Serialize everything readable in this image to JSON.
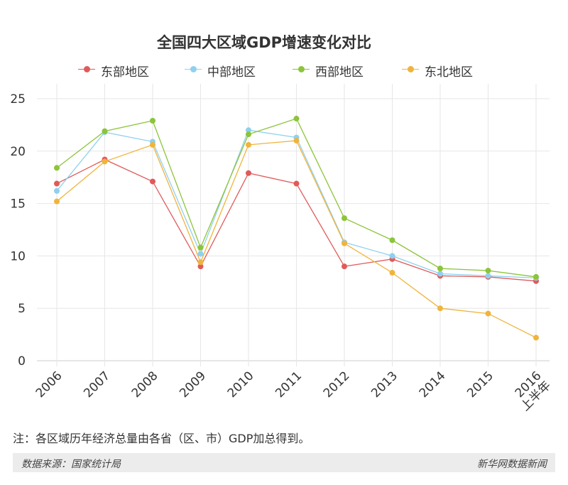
{
  "chart_data": {
    "type": "line",
    "title": "全国四大区域GDP增速变化对比",
    "categories": [
      "2006",
      "2007",
      "2008",
      "2009",
      "2010",
      "2011",
      "2012",
      "2013",
      "2014",
      "2015",
      "2016\n上半年"
    ],
    "series": [
      {
        "name": "东部地区",
        "color": "#e05a5a",
        "values": [
          16.9,
          19.2,
          17.1,
          9.0,
          17.9,
          16.9,
          9.0,
          9.7,
          8.1,
          8.0,
          7.6
        ]
      },
      {
        "name": "中部地区",
        "color": "#8fd0ee",
        "values": [
          16.2,
          21.8,
          20.9,
          10.2,
          22.0,
          21.3,
          11.3,
          10.0,
          8.3,
          8.1,
          7.9
        ]
      },
      {
        "name": "西部地区",
        "color": "#8cc43a",
        "values": [
          18.4,
          21.9,
          22.9,
          10.8,
          21.6,
          23.1,
          13.6,
          11.5,
          8.8,
          8.6,
          8.0
        ]
      },
      {
        "name": "东北地区",
        "color": "#f0b43a",
        "values": [
          15.2,
          19.0,
          20.6,
          9.4,
          20.6,
          21.0,
          11.2,
          8.4,
          5.0,
          4.5,
          2.2
        ]
      }
    ],
    "yticks": [
      0,
      5,
      10,
      15,
      20,
      25
    ],
    "ylim": [
      0,
      26
    ],
    "xlabel": "",
    "ylabel": "",
    "grid": true,
    "legend_position": "top"
  },
  "note": "注：各区域历年经济总量由各省（区、市）GDP加总得到。",
  "footer": {
    "source": "数据来源：国家统计局",
    "brand": "新华网数据新闻"
  }
}
